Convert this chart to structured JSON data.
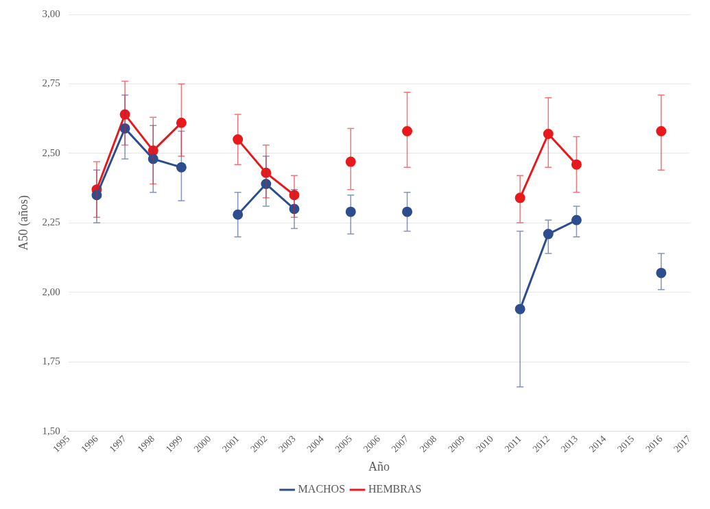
{
  "chart_data": {
    "type": "line",
    "xlabel": "Año",
    "ylabel": "A50 (años)",
    "categories": [
      "1995",
      "1996",
      "1997",
      "1998",
      "1999",
      "2000",
      "2001",
      "2002",
      "2003",
      "2004",
      "2005",
      "2006",
      "2007",
      "2008",
      "2009",
      "2010",
      "2011",
      "2012",
      "2013",
      "2014",
      "2015",
      "2016",
      "2017"
    ],
    "series": [
      {
        "name": "MACHOS",
        "color": "#2e4d8e",
        "values": [
          null,
          2.35,
          2.59,
          2.48,
          2.45,
          null,
          2.28,
          2.39,
          2.3,
          null,
          2.29,
          null,
          2.29,
          null,
          null,
          null,
          1.94,
          2.21,
          2.26,
          null,
          null,
          2.07,
          null
        ],
        "errors": [
          null,
          [
            2.25,
            2.44
          ],
          [
            2.48,
            2.71
          ],
          [
            2.36,
            2.6
          ],
          [
            2.33,
            2.58
          ],
          null,
          [
            2.2,
            2.36
          ],
          [
            2.31,
            2.49
          ],
          [
            2.23,
            2.37
          ],
          null,
          [
            2.21,
            2.35
          ],
          null,
          [
            2.22,
            2.36
          ],
          null,
          null,
          null,
          [
            1.66,
            2.22
          ],
          [
            2.14,
            2.26
          ],
          [
            2.2,
            2.31
          ],
          null,
          null,
          [
            2.01,
            2.14
          ],
          null
        ]
      },
      {
        "name": "HEMBRAS",
        "color": "#e8191c",
        "values": [
          null,
          2.37,
          2.64,
          2.51,
          2.61,
          null,
          2.55,
          2.43,
          2.35,
          null,
          2.47,
          null,
          2.58,
          null,
          null,
          null,
          2.34,
          2.57,
          2.46,
          null,
          null,
          2.58,
          null
        ],
        "errors": [
          null,
          [
            2.27,
            2.47
          ],
          [
            2.53,
            2.76
          ],
          [
            2.39,
            2.63
          ],
          [
            2.49,
            2.75
          ],
          null,
          [
            2.46,
            2.64
          ],
          [
            2.34,
            2.53
          ],
          [
            2.27,
            2.42
          ],
          null,
          [
            2.37,
            2.59
          ],
          null,
          [
            2.45,
            2.72
          ],
          null,
          null,
          null,
          [
            2.25,
            2.42
          ],
          [
            2.45,
            2.7
          ],
          [
            2.36,
            2.56
          ],
          null,
          null,
          [
            2.44,
            2.71
          ],
          null
        ]
      }
    ],
    "ylim": [
      1.5,
      3.0
    ],
    "yticks": [
      {
        "value": 1.5,
        "label": "1,50"
      },
      {
        "value": 1.75,
        "label": "1,75"
      },
      {
        "value": 2.0,
        "label": "2,00"
      },
      {
        "value": 2.25,
        "label": "2,25"
      },
      {
        "value": 2.5,
        "label": "2,50"
      },
      {
        "value": 2.75,
        "label": "2,75"
      },
      {
        "value": 3.0,
        "label": "3,00"
      }
    ],
    "grid": "y",
    "legend": "bottom",
    "marker": "circle",
    "line_style": "solid"
  }
}
